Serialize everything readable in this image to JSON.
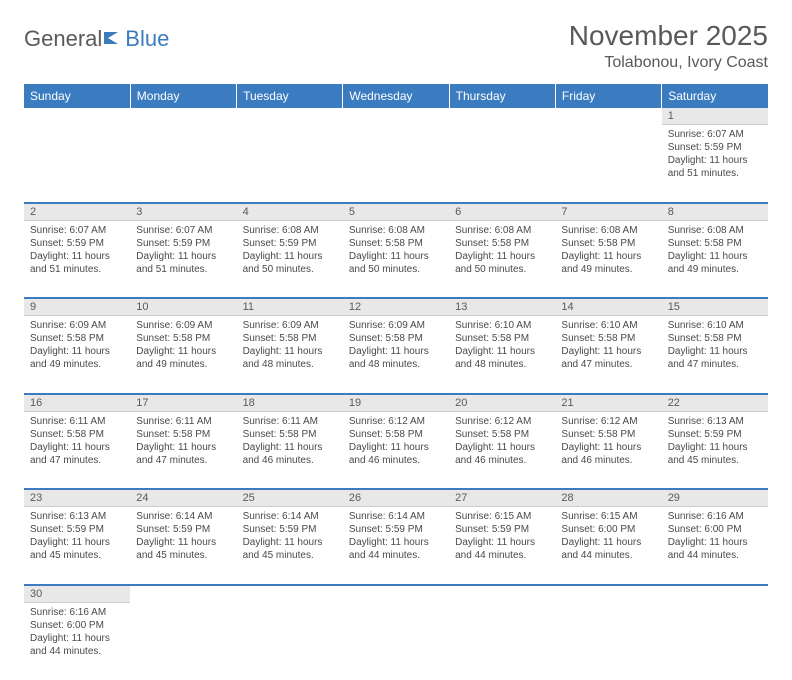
{
  "logo": {
    "text1": "General",
    "text2": "Blue"
  },
  "title": "November 2025",
  "location": "Tolabonou, Ivory Coast",
  "colors": {
    "header_bg": "#3b7bbf",
    "header_text": "#ffffff",
    "daynum_bg": "#e8e8e8",
    "rule": "#3b7bbf",
    "text": "#4a4a4a",
    "title_text": "#595959"
  },
  "days": [
    "Sunday",
    "Monday",
    "Tuesday",
    "Wednesday",
    "Thursday",
    "Friday",
    "Saturday"
  ],
  "weeks": [
    {
      "nums": [
        "",
        "",
        "",
        "",
        "",
        "",
        "1"
      ],
      "cells": [
        null,
        null,
        null,
        null,
        null,
        null,
        {
          "sunrise": "6:07 AM",
          "sunset": "5:59 PM",
          "daylight": "11 hours and 51 minutes."
        }
      ]
    },
    {
      "nums": [
        "2",
        "3",
        "4",
        "5",
        "6",
        "7",
        "8"
      ],
      "cells": [
        {
          "sunrise": "6:07 AM",
          "sunset": "5:59 PM",
          "daylight": "11 hours and 51 minutes."
        },
        {
          "sunrise": "6:07 AM",
          "sunset": "5:59 PM",
          "daylight": "11 hours and 51 minutes."
        },
        {
          "sunrise": "6:08 AM",
          "sunset": "5:59 PM",
          "daylight": "11 hours and 50 minutes."
        },
        {
          "sunrise": "6:08 AM",
          "sunset": "5:58 PM",
          "daylight": "11 hours and 50 minutes."
        },
        {
          "sunrise": "6:08 AM",
          "sunset": "5:58 PM",
          "daylight": "11 hours and 50 minutes."
        },
        {
          "sunrise": "6:08 AM",
          "sunset": "5:58 PM",
          "daylight": "11 hours and 49 minutes."
        },
        {
          "sunrise": "6:08 AM",
          "sunset": "5:58 PM",
          "daylight": "11 hours and 49 minutes."
        }
      ]
    },
    {
      "nums": [
        "9",
        "10",
        "11",
        "12",
        "13",
        "14",
        "15"
      ],
      "cells": [
        {
          "sunrise": "6:09 AM",
          "sunset": "5:58 PM",
          "daylight": "11 hours and 49 minutes."
        },
        {
          "sunrise": "6:09 AM",
          "sunset": "5:58 PM",
          "daylight": "11 hours and 49 minutes."
        },
        {
          "sunrise": "6:09 AM",
          "sunset": "5:58 PM",
          "daylight": "11 hours and 48 minutes."
        },
        {
          "sunrise": "6:09 AM",
          "sunset": "5:58 PM",
          "daylight": "11 hours and 48 minutes."
        },
        {
          "sunrise": "6:10 AM",
          "sunset": "5:58 PM",
          "daylight": "11 hours and 48 minutes."
        },
        {
          "sunrise": "6:10 AM",
          "sunset": "5:58 PM",
          "daylight": "11 hours and 47 minutes."
        },
        {
          "sunrise": "6:10 AM",
          "sunset": "5:58 PM",
          "daylight": "11 hours and 47 minutes."
        }
      ]
    },
    {
      "nums": [
        "16",
        "17",
        "18",
        "19",
        "20",
        "21",
        "22"
      ],
      "cells": [
        {
          "sunrise": "6:11 AM",
          "sunset": "5:58 PM",
          "daylight": "11 hours and 47 minutes."
        },
        {
          "sunrise": "6:11 AM",
          "sunset": "5:58 PM",
          "daylight": "11 hours and 47 minutes."
        },
        {
          "sunrise": "6:11 AM",
          "sunset": "5:58 PM",
          "daylight": "11 hours and 46 minutes."
        },
        {
          "sunrise": "6:12 AM",
          "sunset": "5:58 PM",
          "daylight": "11 hours and 46 minutes."
        },
        {
          "sunrise": "6:12 AM",
          "sunset": "5:58 PM",
          "daylight": "11 hours and 46 minutes."
        },
        {
          "sunrise": "6:12 AM",
          "sunset": "5:58 PM",
          "daylight": "11 hours and 46 minutes."
        },
        {
          "sunrise": "6:13 AM",
          "sunset": "5:59 PM",
          "daylight": "11 hours and 45 minutes."
        }
      ]
    },
    {
      "nums": [
        "23",
        "24",
        "25",
        "26",
        "27",
        "28",
        "29"
      ],
      "cells": [
        {
          "sunrise": "6:13 AM",
          "sunset": "5:59 PM",
          "daylight": "11 hours and 45 minutes."
        },
        {
          "sunrise": "6:14 AM",
          "sunset": "5:59 PM",
          "daylight": "11 hours and 45 minutes."
        },
        {
          "sunrise": "6:14 AM",
          "sunset": "5:59 PM",
          "daylight": "11 hours and 45 minutes."
        },
        {
          "sunrise": "6:14 AM",
          "sunset": "5:59 PM",
          "daylight": "11 hours and 44 minutes."
        },
        {
          "sunrise": "6:15 AM",
          "sunset": "5:59 PM",
          "daylight": "11 hours and 44 minutes."
        },
        {
          "sunrise": "6:15 AM",
          "sunset": "6:00 PM",
          "daylight": "11 hours and 44 minutes."
        },
        {
          "sunrise": "6:16 AM",
          "sunset": "6:00 PM",
          "daylight": "11 hours and 44 minutes."
        }
      ]
    },
    {
      "nums": [
        "30",
        "",
        "",
        "",
        "",
        "",
        ""
      ],
      "cells": [
        {
          "sunrise": "6:16 AM",
          "sunset": "6:00 PM",
          "daylight": "11 hours and 44 minutes."
        },
        null,
        null,
        null,
        null,
        null,
        null
      ]
    }
  ],
  "labels": {
    "sunrise": "Sunrise:",
    "sunset": "Sunset:",
    "daylight": "Daylight:"
  }
}
